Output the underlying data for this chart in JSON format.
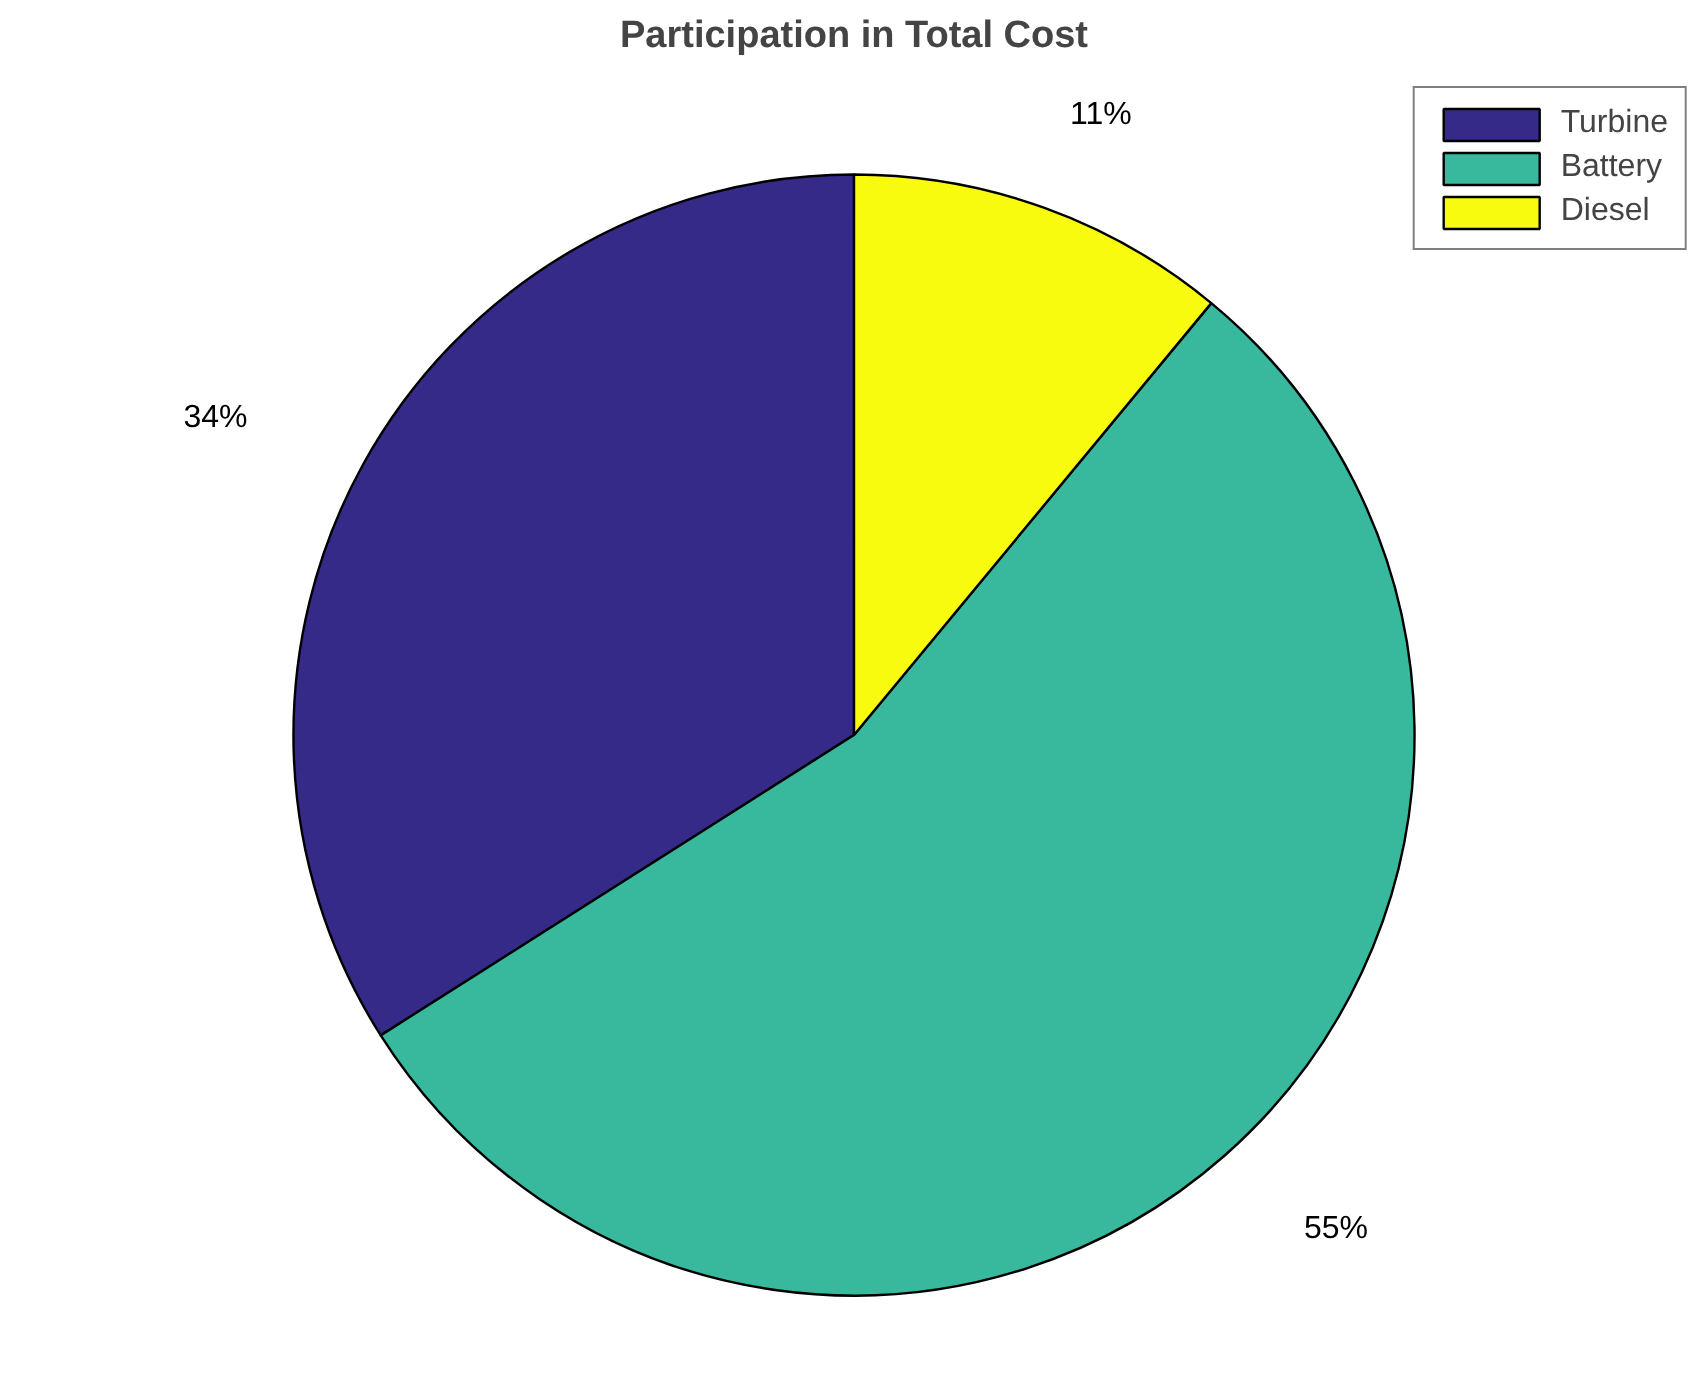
{
  "chart_data": {
    "type": "pie",
    "title": "Participation in Total Cost",
    "categories": [
      "Turbine",
      "Battery",
      "Diesel"
    ],
    "values": [
      34,
      55,
      11
    ],
    "value_labels": [
      "34%",
      "55%",
      "11%"
    ],
    "colors": [
      "#352a87",
      "#38b99e",
      "#f9fb0e"
    ],
    "legend": "top right"
  }
}
